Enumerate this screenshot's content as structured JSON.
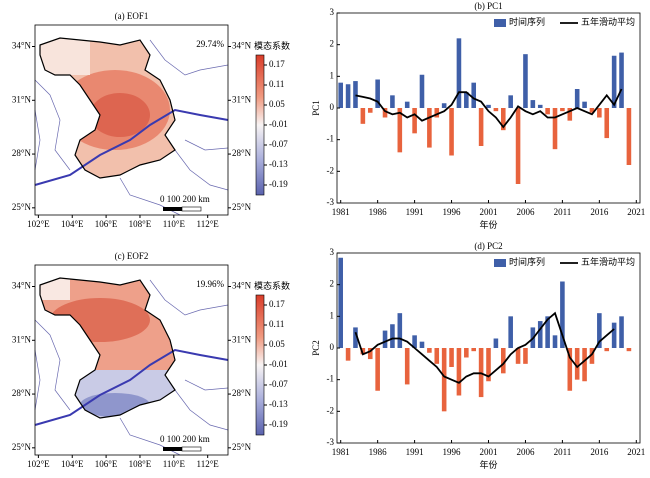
{
  "chart_data": [
    {
      "type": "map",
      "title": "(a) EOF1",
      "variance": "29.74%",
      "scale_label": "0 100 200 km",
      "xlim": [
        101.8,
        113.2
      ],
      "ylim": [
        24.6,
        35.2
      ],
      "xticks": [
        {
          "value": 102,
          "label": "102°E"
        },
        {
          "value": 104,
          "label": "104°E"
        },
        {
          "value": 106,
          "label": "106°E"
        },
        {
          "value": 108,
          "label": "108°E"
        },
        {
          "value": 110,
          "label": "110°E"
        },
        {
          "value": 112,
          "label": "112°E"
        }
      ],
      "yticks": [
        {
          "value": 34,
          "label": "34°N"
        },
        {
          "value": 31,
          "label": "31°N"
        },
        {
          "value": 28,
          "label": "28°N"
        },
        {
          "value": 25,
          "label": "25°N"
        }
      ],
      "colorbar": {
        "label": "模态系数",
        "lim": [
          -0.22,
          0.2
        ],
        "ticks": [
          0.17,
          0.11,
          0.05,
          -0.01,
          -0.07,
          -0.13,
          -0.19
        ]
      }
    },
    {
      "type": "bar",
      "title": "(b) PC1",
      "xlabel": "年份",
      "ylabel": "PC1",
      "x": [
        1981,
        1982,
        1983,
        1984,
        1985,
        1986,
        1987,
        1988,
        1989,
        1990,
        1991,
        1992,
        1993,
        1994,
        1995,
        1996,
        1997,
        1998,
        1999,
        2000,
        2001,
        2002,
        2003,
        2004,
        2005,
        2006,
        2007,
        2008,
        2009,
        2010,
        2011,
        2012,
        2013,
        2014,
        2015,
        2016,
        2017,
        2018,
        2019,
        2020
      ],
      "xlim": [
        1980.5,
        2021.5
      ],
      "xticks": [
        1981,
        1986,
        1991,
        1996,
        2001,
        2006,
        2011,
        2016,
        2021
      ],
      "ylim": [
        -3,
        3
      ],
      "yticks": [
        -3,
        -2,
        -1,
        0,
        1,
        2,
        3
      ],
      "legend": "top-right",
      "series": [
        {
          "name": "时间序列",
          "color": "#3f5fa8",
          "negative_color": "#e8633d",
          "values": [
            0.8,
            0.75,
            0.85,
            -0.5,
            -0.15,
            0.9,
            -0.3,
            0.4,
            -1.4,
            0.2,
            -0.8,
            1.05,
            -1.25,
            -0.3,
            0.15,
            -1.5,
            2.2,
            0.5,
            0.8,
            -1.2,
            0.1,
            -0.1,
            -0.7,
            0.4,
            -2.4,
            1.7,
            0.25,
            0.1,
            -0.2,
            -1.3,
            -0.1,
            -0.4,
            0.6,
            0.2,
            -0.15,
            -0.3,
            -0.95,
            1.65,
            1.75,
            -1.8
          ]
        },
        {
          "name": "五年滑动平均",
          "type": "line",
          "color": "#000000",
          "values": [
            null,
            null,
            0.4,
            0.35,
            0.3,
            0.2,
            -0.1,
            -0.2,
            -0.15,
            -0.3,
            -0.2,
            -0.4,
            -0.3,
            -0.2,
            -0.1,
            0.1,
            0.5,
            0.5,
            0.3,
            0.2,
            -0.1,
            -0.3,
            -0.6,
            -0.3,
            0.05,
            -0.1,
            -0.2,
            -0.1,
            -0.3,
            -0.3,
            -0.2,
            -0.1,
            0.0,
            -0.1,
            -0.2,
            0.1,
            0.4,
            0.1,
            0.6,
            null
          ]
        }
      ]
    },
    {
      "type": "map",
      "title": "(c) EOF2",
      "variance": "19.96%",
      "scale_label": "0 100 200 km",
      "xlim": [
        101.8,
        113.2
      ],
      "ylim": [
        24.6,
        35.2
      ],
      "xticks": [
        {
          "value": 102,
          "label": "102°E"
        },
        {
          "value": 104,
          "label": "104°E"
        },
        {
          "value": 106,
          "label": "106°E"
        },
        {
          "value": 108,
          "label": "108°E"
        },
        {
          "value": 110,
          "label": "110°E"
        },
        {
          "value": 112,
          "label": "112°E"
        }
      ],
      "yticks": [
        {
          "value": 34,
          "label": "34°N"
        },
        {
          "value": 31,
          "label": "31°N"
        },
        {
          "value": 28,
          "label": "28°N"
        },
        {
          "value": 25,
          "label": "25°N"
        }
      ],
      "colorbar": {
        "label": "模态系数",
        "lim": [
          -0.22,
          0.2
        ],
        "ticks": [
          0.17,
          0.11,
          0.05,
          -0.01,
          -0.07,
          -0.13,
          -0.19
        ]
      }
    },
    {
      "type": "bar",
      "title": "(d) PC2",
      "xlabel": "年份",
      "ylabel": "PC2",
      "x": [
        1981,
        1982,
        1983,
        1984,
        1985,
        1986,
        1987,
        1988,
        1989,
        1990,
        1991,
        1992,
        1993,
        1994,
        1995,
        1996,
        1997,
        1998,
        1999,
        2000,
        2001,
        2002,
        2003,
        2004,
        2005,
        2006,
        2007,
        2008,
        2009,
        2010,
        2011,
        2012,
        2013,
        2014,
        2015,
        2016,
        2017,
        2018,
        2019,
        2020
      ],
      "xlim": [
        1980.5,
        2021.5
      ],
      "xticks": [
        1981,
        1986,
        1991,
        1996,
        2001,
        2006,
        2011,
        2016,
        2021
      ],
      "ylim": [
        -3,
        3
      ],
      "yticks": [
        -3,
        -2,
        -1,
        0,
        1,
        2,
        3
      ],
      "legend": "top-right",
      "series": [
        {
          "name": "时间序列",
          "color": "#3f5fa8",
          "negative_color": "#e8633d",
          "values": [
            2.85,
            -0.4,
            0.65,
            -0.2,
            -0.35,
            -1.35,
            0.55,
            0.75,
            1.1,
            -1.15,
            0.4,
            0.2,
            -0.15,
            -0.5,
            -2.0,
            -0.6,
            -1.5,
            -0.3,
            -0.1,
            -1.55,
            -1.05,
            0.3,
            -0.8,
            1.0,
            -0.5,
            -0.5,
            0.65,
            0.85,
            1.0,
            0.4,
            2.1,
            -1.35,
            -1.0,
            -1.05,
            -0.5,
            1.1,
            -0.1,
            0.8,
            1.0,
            -0.1
          ]
        },
        {
          "name": "五年滑动平均",
          "type": "line",
          "color": "#000000",
          "values": [
            null,
            null,
            0.5,
            -0.2,
            -0.1,
            0.1,
            0.2,
            0.3,
            0.3,
            0.2,
            0.0,
            -0.2,
            -0.4,
            -0.6,
            -0.9,
            -1.0,
            -1.1,
            -0.9,
            -0.8,
            -0.8,
            -0.9,
            -0.7,
            -0.5,
            -0.2,
            0.0,
            0.1,
            0.3,
            0.6,
            0.9,
            1.1,
            0.4,
            -0.3,
            -0.6,
            -0.4,
            -0.2,
            0.2,
            0.4,
            0.6,
            null,
            null
          ]
        }
      ]
    }
  ]
}
